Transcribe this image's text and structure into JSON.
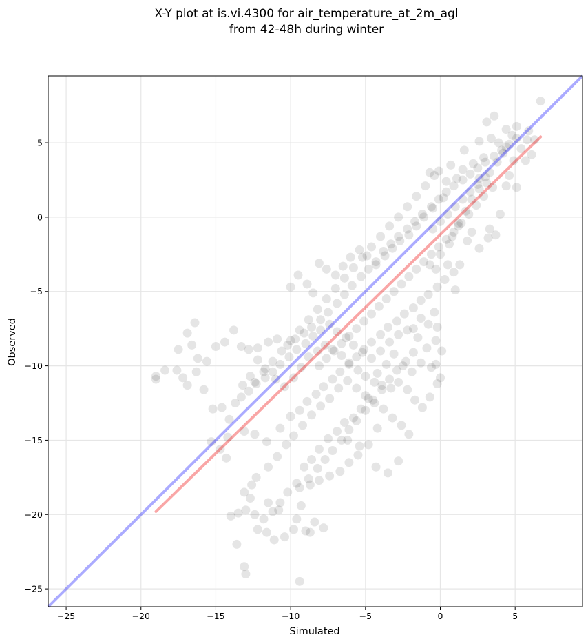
{
  "chart_data": {
    "type": "scatter",
    "title": "X-Y plot at is.vi.4300 for air_temperature_at_2m_agl",
    "subtitle": "from 42-48h during winter",
    "xlabel": "Simulated",
    "ylabel": "Observed",
    "xlim": [
      -26.2,
      9.5
    ],
    "ylim": [
      -26.2,
      9.5
    ],
    "xticks": [
      -25,
      -20,
      -15,
      -10,
      -5,
      0,
      5
    ],
    "yticks": [
      -25,
      -20,
      -15,
      -10,
      -5,
      0,
      5
    ],
    "xtick_labels": [
      "−25",
      "−20",
      "−15",
      "−10",
      "−5",
      "0",
      "5"
    ],
    "ytick_labels": [
      "−25",
      "−20",
      "−15",
      "−10",
      "−5",
      "0",
      "5"
    ],
    "grid": true,
    "point_color": "#000000",
    "point_alpha": 0.1,
    "one_to_one_line": {
      "x": [
        -26.2,
        9.5
      ],
      "y": [
        -26.2,
        9.5
      ],
      "color": "#0000ff"
    },
    "regression_line": {
      "x": [
        -19.0,
        6.7
      ],
      "y": [
        -19.8,
        5.4
      ],
      "color": "#ee0000"
    },
    "points": [
      [
        6.7,
        7.8
      ],
      [
        3.6,
        6.8
      ],
      [
        3.1,
        6.4
      ],
      [
        4.4,
        5.9
      ],
      [
        5.9,
        5.8
      ],
      [
        5.1,
        6.1
      ],
      [
        2.6,
        5.1
      ],
      [
        3.4,
        5.3
      ],
      [
        1.6,
        4.5
      ],
      [
        4.2,
        4.3
      ],
      [
        5.8,
        5.2
      ],
      [
        6.1,
        4.2
      ],
      [
        4.9,
        3.8
      ],
      [
        4.6,
        2.8
      ],
      [
        5.1,
        2.0
      ],
      [
        4.0,
        0.2
      ],
      [
        3.7,
        -1.2
      ],
      [
        3.2,
        -1.4
      ],
      [
        2.6,
        -2.1
      ],
      [
        1.8,
        -1.6
      ],
      [
        1.2,
        -0.6
      ],
      [
        0.6,
        -1.8
      ],
      [
        0.0,
        -2.5
      ],
      [
        -0.3,
        -3.5
      ],
      [
        -0.7,
        -3.2
      ],
      [
        -0.1,
        3.1
      ],
      [
        -0.7,
        3.0
      ],
      [
        0.4,
        2.4
      ],
      [
        1.5,
        3.2
      ],
      [
        2.2,
        3.6
      ],
      [
        2.6,
        2.6
      ],
      [
        3.3,
        3.0
      ],
      [
        3.8,
        3.7
      ],
      [
        4.4,
        4.7
      ],
      [
        2.9,
        4.0
      ],
      [
        1.1,
        2.6
      ],
      [
        0.2,
        1.3
      ],
      [
        -0.5,
        0.6
      ],
      [
        -1.1,
        0.0
      ],
      [
        -1.6,
        -0.6
      ],
      [
        -2.1,
        -1.2
      ],
      [
        -2.7,
        -1.6
      ],
      [
        -3.2,
        -2.1
      ],
      [
        -3.7,
        -2.6
      ],
      [
        -4.3,
        -3.2
      ],
      [
        -4.8,
        -3.5
      ],
      [
        -5.3,
        -4.0
      ],
      [
        -5.9,
        -4.6
      ],
      [
        -6.4,
        -5.2
      ],
      [
        -6.9,
        -5.8
      ],
      [
        -7.5,
        -6.4
      ],
      [
        -8.0,
        -6.9
      ],
      [
        -8.6,
        -7.4
      ],
      [
        -9.1,
        -7.8
      ],
      [
        -9.7,
        -8.2
      ],
      [
        -10.2,
        -8.6
      ],
      [
        -10.9,
        -8.2
      ],
      [
        -11.5,
        -8.4
      ],
      [
        -12.2,
        -8.8
      ],
      [
        -12.8,
        -8.9
      ],
      [
        -13.3,
        -8.7
      ],
      [
        -13.8,
        -7.6
      ],
      [
        -14.4,
        -8.4
      ],
      [
        -15.0,
        -8.7
      ],
      [
        -15.6,
        -9.7
      ],
      [
        -16.2,
        -9.5
      ],
      [
        -16.6,
        -8.6
      ],
      [
        -16.9,
        -7.8
      ],
      [
        -16.4,
        -7.1
      ],
      [
        -17.5,
        -8.9
      ],
      [
        -18.4,
        -10.3
      ],
      [
        -19.0,
        -10.7
      ],
      [
        -19.0,
        -10.9
      ],
      [
        -17.6,
        -10.3
      ],
      [
        -17.2,
        -10.8
      ],
      [
        -16.9,
        -11.3
      ],
      [
        -16.3,
        -10.4
      ],
      [
        -15.8,
        -11.6
      ],
      [
        -15.2,
        -12.9
      ],
      [
        -14.6,
        -12.8
      ],
      [
        -14.1,
        -13.6
      ],
      [
        -13.7,
        -12.5
      ],
      [
        -13.2,
        -11.3
      ],
      [
        -12.7,
        -10.7
      ],
      [
        -12.2,
        -9.6
      ],
      [
        -11.7,
        -10.2
      ],
      [
        -11.0,
        -10.9
      ],
      [
        -10.4,
        -11.4
      ],
      [
        -9.8,
        -10.8
      ],
      [
        -9.3,
        -10.1
      ],
      [
        -8.8,
        -9.4
      ],
      [
        -8.2,
        -9.0
      ],
      [
        -7.7,
        -8.6
      ],
      [
        -7.2,
        -8.9
      ],
      [
        -6.6,
        -9.3
      ],
      [
        -6.1,
        -9.8
      ],
      [
        -5.5,
        -10.3
      ],
      [
        -5.0,
        -10.7
      ],
      [
        -4.4,
        -11.1
      ],
      [
        -3.9,
        -11.3
      ],
      [
        -3.3,
        -11.5
      ],
      [
        -2.8,
        -11.1
      ],
      [
        -2.2,
        -11.6
      ],
      [
        -1.7,
        -12.3
      ],
      [
        -1.2,
        -12.8
      ],
      [
        -0.7,
        -12.1
      ],
      [
        -0.2,
        -11.2
      ],
      [
        0.0,
        -10.8
      ],
      [
        -0.6,
        -10.1
      ],
      [
        -1.3,
        -9.8
      ],
      [
        -1.9,
        -10.4
      ],
      [
        -2.5,
        -10.0
      ],
      [
        -3.1,
        -9.2
      ],
      [
        -3.6,
        -9.9
      ],
      [
        -4.2,
        -10.5
      ],
      [
        -4.8,
        -12.2
      ],
      [
        -5.3,
        -12.9
      ],
      [
        -5.8,
        -13.5
      ],
      [
        -6.4,
        -13.8
      ],
      [
        -6.9,
        -14.4
      ],
      [
        -7.5,
        -14.9
      ],
      [
        -8.1,
        -15.6
      ],
      [
        -8.6,
        -16.3
      ],
      [
        -9.1,
        -16.8
      ],
      [
        -9.6,
        -17.9
      ],
      [
        -10.2,
        -18.5
      ],
      [
        -10.7,
        -19.2
      ],
      [
        -11.2,
        -19.8
      ],
      [
        -11.8,
        -20.3
      ],
      [
        -12.4,
        -20.0
      ],
      [
        -13.0,
        -19.7
      ],
      [
        -13.5,
        -19.9
      ],
      [
        -14.0,
        -20.1
      ],
      [
        -12.7,
        -18.9
      ],
      [
        -13.1,
        -18.5
      ],
      [
        -12.3,
        -17.5
      ],
      [
        -11.5,
        -16.8
      ],
      [
        -10.9,
        -16.1
      ],
      [
        -10.3,
        -15.3
      ],
      [
        -9.8,
        -14.7
      ],
      [
        -9.2,
        -14.0
      ],
      [
        -8.6,
        -13.3
      ],
      [
        -8.0,
        -12.7
      ],
      [
        -7.4,
        -12.2
      ],
      [
        -6.8,
        -11.5
      ],
      [
        -6.2,
        -11.0
      ],
      [
        -5.6,
        -11.5
      ],
      [
        -5.0,
        -12.0
      ],
      [
        -4.4,
        -12.5
      ],
      [
        -3.8,
        -12.9
      ],
      [
        -3.2,
        -13.5
      ],
      [
        -2.6,
        -14.0
      ],
      [
        -2.1,
        -14.6
      ],
      [
        -4.2,
        -14.2
      ],
      [
        -4.8,
        -15.3
      ],
      [
        -5.5,
        -16.0
      ],
      [
        -6.1,
        -16.5
      ],
      [
        -6.7,
        -17.1
      ],
      [
        -7.4,
        -17.4
      ],
      [
        -8.1,
        -17.7
      ],
      [
        -8.7,
        -18.0
      ],
      [
        -9.3,
        -19.4
      ],
      [
        -9.6,
        -20.3
      ],
      [
        -9.8,
        -21.0
      ],
      [
        -10.4,
        -21.5
      ],
      [
        -11.1,
        -21.7
      ],
      [
        -11.6,
        -21.2
      ],
      [
        -12.2,
        -21.0
      ],
      [
        -13.6,
        -22.0
      ],
      [
        -13.1,
        -23.5
      ],
      [
        -13.0,
        -24.0
      ],
      [
        -9.4,
        -24.5
      ],
      [
        -8.7,
        -21.2
      ],
      [
        -7.8,
        -20.9
      ],
      [
        -8.4,
        -20.5
      ],
      [
        -9.0,
        -21.1
      ],
      [
        -10.8,
        -19.7
      ],
      [
        -11.5,
        -19.2
      ],
      [
        -12.6,
        -18.0
      ],
      [
        -14.3,
        -16.2
      ],
      [
        -15.3,
        -15.1
      ],
      [
        -14.7,
        -15.6
      ],
      [
        -14.2,
        -14.8
      ],
      [
        -13.1,
        -14.4
      ],
      [
        -12.4,
        -14.6
      ],
      [
        -11.6,
        -15.1
      ],
      [
        -10.7,
        -14.2
      ],
      [
        -10.0,
        -13.4
      ],
      [
        -9.4,
        -13.0
      ],
      [
        -8.9,
        -12.4
      ],
      [
        -8.3,
        -11.9
      ],
      [
        -7.8,
        -11.4
      ],
      [
        -7.2,
        -10.9
      ],
      [
        -6.7,
        -10.4
      ],
      [
        -6.1,
        -9.9
      ],
      [
        -5.6,
        -9.4
      ],
      [
        -5.1,
        -8.9
      ],
      [
        -4.6,
        -8.4
      ],
      [
        -4.0,
        -7.9
      ],
      [
        -3.5,
        -7.4
      ],
      [
        -2.9,
        -7.0
      ],
      [
        -2.4,
        -6.5
      ],
      [
        -1.8,
        -6.1
      ],
      [
        -1.3,
        -5.6
      ],
      [
        -0.8,
        -5.2
      ],
      [
        -0.2,
        -4.7
      ],
      [
        0.3,
        -4.2
      ],
      [
        0.9,
        -3.7
      ],
      [
        1.3,
        -3.2
      ],
      [
        -0.4,
        -6.4
      ],
      [
        -0.2,
        -7.4
      ],
      [
        -0.3,
        -8.3
      ],
      [
        -0.9,
        -8.8
      ],
      [
        -1.5,
        -8.1
      ],
      [
        -2.2,
        -7.6
      ],
      [
        -2.8,
        -7.9
      ],
      [
        -3.4,
        -8.4
      ],
      [
        -4.0,
        -9.0
      ],
      [
        -4.6,
        -9.5
      ],
      [
        -5.2,
        -9.1
      ],
      [
        -5.8,
        -8.6
      ],
      [
        -6.3,
        -8.1
      ],
      [
        -6.9,
        -7.7
      ],
      [
        -7.4,
        -7.2
      ],
      [
        -8.0,
        -7.6
      ],
      [
        -8.5,
        -8.0
      ],
      [
        -9.0,
        -8.5
      ],
      [
        -9.6,
        -8.9
      ],
      [
        -10.1,
        -9.4
      ],
      [
        -10.7,
        -9.9
      ],
      [
        -11.2,
        -10.4
      ],
      [
        -11.7,
        -10.8
      ],
      [
        -12.3,
        -11.2
      ],
      [
        -12.8,
        -11.7
      ],
      [
        -13.3,
        -12.1
      ],
      [
        -10.0,
        -4.7
      ],
      [
        -9.5,
        -3.9
      ],
      [
        -8.9,
        -4.5
      ],
      [
        -8.5,
        -5.1
      ],
      [
        -8.1,
        -3.1
      ],
      [
        -7.6,
        -3.5
      ],
      [
        -7.0,
        -3.9
      ],
      [
        -6.5,
        -3.3
      ],
      [
        -6.0,
        -2.7
      ],
      [
        -5.4,
        -2.2
      ],
      [
        -4.9,
        -2.6
      ],
      [
        -4.3,
        -3.0
      ],
      [
        -3.8,
        -2.3
      ],
      [
        -3.3,
        -1.8
      ],
      [
        -2.8,
        -1.3
      ],
      [
        -2.2,
        -0.8
      ],
      [
        -1.7,
        -0.3
      ],
      [
        -1.2,
        0.2
      ],
      [
        -0.6,
        0.7
      ],
      [
        -0.1,
        1.2
      ],
      [
        0.4,
        1.7
      ],
      [
        0.9,
        2.1
      ],
      [
        1.5,
        2.5
      ],
      [
        2.0,
        2.9
      ],
      [
        2.5,
        3.3
      ],
      [
        3.0,
        3.7
      ],
      [
        3.6,
        4.1
      ],
      [
        4.1,
        4.5
      ],
      [
        4.6,
        4.9
      ],
      [
        5.1,
        5.3
      ],
      [
        0.8,
        -1.3
      ],
      [
        1.2,
        -0.4
      ],
      [
        1.7,
        0.4
      ],
      [
        2.1,
        1.2
      ],
      [
        2.6,
        1.9
      ],
      [
        3.1,
        2.3
      ],
      [
        3.5,
        2.0
      ],
      [
        2.9,
        1.4
      ],
      [
        2.4,
        0.8
      ],
      [
        1.9,
        0.2
      ],
      [
        1.4,
        -0.4
      ],
      [
        0.9,
        -1.0
      ],
      [
        0.4,
        -1.5
      ],
      [
        -0.1,
        -2.0
      ],
      [
        -0.6,
        -2.5
      ],
      [
        -1.1,
        -3.0
      ],
      [
        -1.6,
        -3.5
      ],
      [
        -2.1,
        -4.0
      ],
      [
        -2.6,
        -4.5
      ],
      [
        -3.1,
        -5.0
      ],
      [
        -3.6,
        -5.5
      ],
      [
        -4.1,
        -6.0
      ],
      [
        -4.6,
        -6.5
      ],
      [
        -5.1,
        -7.0
      ],
      [
        -5.6,
        -7.5
      ],
      [
        -6.1,
        -8.0
      ],
      [
        -6.6,
        -8.5
      ],
      [
        -7.1,
        -9.0
      ],
      [
        -7.6,
        -9.5
      ],
      [
        -8.1,
        -10.0
      ],
      [
        -0.5,
        -0.8
      ],
      [
        0.0,
        -0.3
      ],
      [
        0.5,
        0.2
      ],
      [
        1.0,
        0.7
      ],
      [
        1.5,
        1.2
      ],
      [
        2.0,
        1.7
      ],
      [
        2.5,
        2.2
      ],
      [
        3.0,
        2.7
      ],
      [
        0.7,
        3.5
      ],
      [
        -0.4,
        2.8
      ],
      [
        -1.0,
        2.1
      ],
      [
        -1.6,
        1.4
      ],
      [
        -2.2,
        0.7
      ],
      [
        -2.8,
        0.0
      ],
      [
        -3.4,
        -0.6
      ],
      [
        -4.0,
        -1.3
      ],
      [
        -4.6,
        -2.0
      ],
      [
        -5.2,
        -2.7
      ],
      [
        -5.8,
        -3.4
      ],
      [
        -6.4,
        -4.1
      ],
      [
        -7.0,
        -4.8
      ],
      [
        -7.6,
        -5.5
      ],
      [
        -8.2,
        -6.2
      ],
      [
        -8.8,
        -6.9
      ],
      [
        -9.4,
        -7.6
      ],
      [
        -10.0,
        -8.3
      ],
      [
        -10.6,
        -9.0
      ],
      [
        -11.2,
        -9.7
      ],
      [
        -11.8,
        -10.4
      ],
      [
        -12.4,
        -11.1
      ],
      [
        -1.8,
        -9.1
      ],
      [
        -2.3,
        -9.7
      ],
      [
        -2.9,
        -10.3
      ],
      [
        -3.4,
        -10.9
      ],
      [
        -3.9,
        -11.6
      ],
      [
        -4.5,
        -12.3
      ],
      [
        -5.0,
        -13.0
      ],
      [
        -5.6,
        -13.7
      ],
      [
        -6.1,
        -14.3
      ],
      [
        -6.6,
        -15.0
      ],
      [
        -7.2,
        -15.7
      ],
      [
        -7.7,
        -16.3
      ],
      [
        -8.2,
        -16.9
      ],
      [
        -8.8,
        -17.6
      ],
      [
        -9.4,
        -18.2
      ],
      [
        -2.8,
        -16.4
      ],
      [
        -3.5,
        -17.2
      ],
      [
        -4.3,
        -16.8
      ],
      [
        -5.4,
        -15.4
      ],
      [
        -6.2,
        -15.0
      ],
      [
        -0.3,
        -9.9
      ],
      [
        0.1,
        -9.0
      ],
      [
        -0.8,
        -7.2
      ],
      [
        -1.3,
        -6.8
      ],
      [
        -1.8,
        -7.5
      ],
      [
        1.0,
        -4.9
      ],
      [
        0.5,
        -3.2
      ],
      [
        2.1,
        -1.0
      ],
      [
        3.3,
        -0.8
      ],
      [
        4.4,
        2.1
      ],
      [
        5.7,
        3.8
      ],
      [
        5.4,
        4.6
      ],
      [
        6.3,
        5.2
      ],
      [
        4.8,
        5.5
      ],
      [
        3.9,
        5.0
      ]
    ]
  }
}
